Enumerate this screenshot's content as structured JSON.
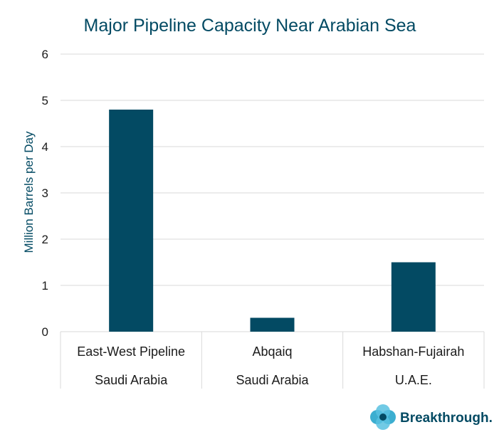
{
  "chart_data": {
    "type": "bar",
    "title": "Major Pipeline Capacity Near Arabian Sea",
    "xlabel": "",
    "ylabel": "Million Barrels per Day",
    "ylim": [
      0,
      6
    ],
    "yticks": [
      0,
      1,
      2,
      3,
      4,
      5,
      6
    ],
    "categories": [
      {
        "name": "East-West Pipeline",
        "country": "Saudi Arabia"
      },
      {
        "name": "Abqaiq",
        "country": "Saudi Arabia"
      },
      {
        "name": "Habshan-Fujairah",
        "country": "U.A.E."
      }
    ],
    "values": [
      4.8,
      0.3,
      1.5
    ],
    "grid": true,
    "legend": "none"
  },
  "colors": {
    "bar": "#034a63",
    "title": "#034a63",
    "axis_label": "#034a63",
    "gridline": "#d9d9d9",
    "logo_text": "#034a63",
    "logo_mark": "#1aa0c8"
  },
  "logo": {
    "text": "Breakthrough.",
    "icon": "breakthrough-logo-icon"
  }
}
